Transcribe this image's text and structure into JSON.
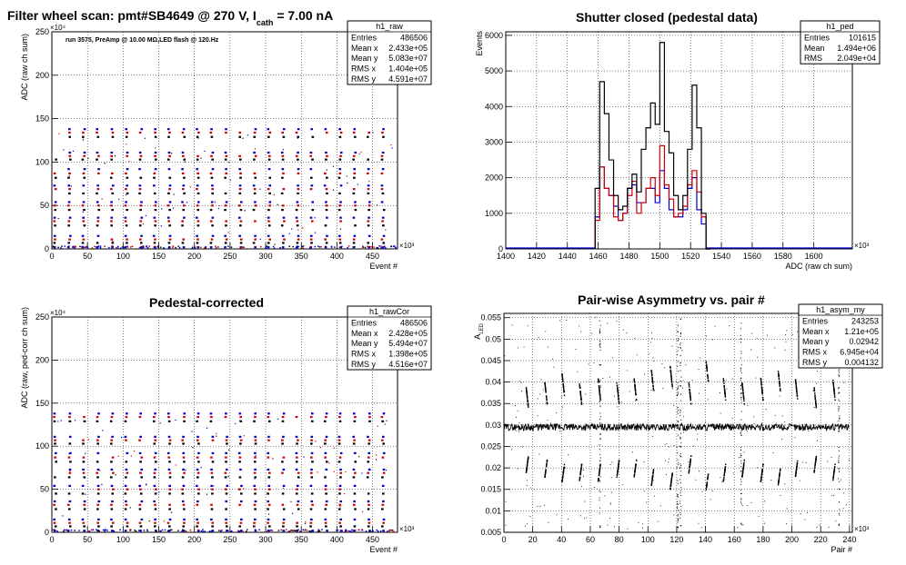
{
  "page_title": {
    "main": "Filter wheel scan: pmt#SB4649 @   270 V, I",
    "sub": "cath",
    "tail": "= 7.00 nA"
  },
  "panels": [
    {
      "id": "raw",
      "stats": {
        "name": "h1_raw",
        "rows": [
          [
            "Entries",
            "486506"
          ],
          [
            "Mean x",
            "2.433e+05"
          ],
          [
            "Mean y",
            "5.083e+07"
          ],
          [
            "RMS x",
            "1.404e+05"
          ],
          [
            "RMS y",
            "4.591e+07"
          ]
        ]
      },
      "annotation": "run 3575, PreAmp @ 10.00 MΩ,LED flash @  120.Hz"
    },
    {
      "id": "ped",
      "title": "Shutter closed (pedestal data)",
      "stats": {
        "name": "h1_ped",
        "rows": [
          [
            "Entries",
            "101615"
          ],
          [
            "Mean",
            "1.494e+06"
          ],
          [
            "RMS",
            "2.049e+04"
          ]
        ]
      }
    },
    {
      "id": "rawCor",
      "title": "Pedestal-corrected",
      "stats": {
        "name": "h1_rawCor",
        "rows": [
          [
            "Entries",
            "486506"
          ],
          [
            "Mean x",
            "2.428e+05"
          ],
          [
            "Mean y",
            "5.494e+07"
          ],
          [
            "RMS x",
            "1.398e+05"
          ],
          [
            "RMS y",
            "4.516e+07"
          ]
        ]
      }
    },
    {
      "id": "asym",
      "title": "Pair-wise Asymmetry vs. pair #",
      "stats": {
        "name": "h1_asym_my",
        "rows": [
          [
            "Entries",
            "243253"
          ],
          [
            "Mean x",
            "1.21e+05"
          ],
          [
            "Mean y",
            "0.02942"
          ],
          [
            "RMS x",
            "6.945e+04"
          ],
          [
            "RMS y",
            "0.004132"
          ]
        ]
      }
    }
  ],
  "chart_data": [
    {
      "type": "scatter",
      "title": "",
      "xlabel": "Event #",
      "ylabel": "ADC (raw ch sum)",
      "x_exponent": "×10³",
      "y_exponent": "×10⁴",
      "xlim": [
        0,
        485
      ],
      "ylim": [
        0,
        250
      ],
      "xticks": [
        0,
        50,
        100,
        150,
        200,
        250,
        300,
        350,
        400,
        450
      ],
      "yticks": [
        0,
        50,
        100,
        150,
        200,
        250
      ],
      "grid": true,
      "colors": [
        "#0000cc",
        "#cc0000",
        "#000000"
      ],
      "levels": [
        {
          "y": 138,
          "color": "#0000cc"
        },
        {
          "y": 134,
          "color": "#cc0000"
        },
        {
          "y": 129,
          "color": "#000000"
        },
        {
          "y": 111,
          "color": "#0000cc"
        },
        {
          "y": 107,
          "color": "#cc0000"
        },
        {
          "y": 103,
          "color": "#000000"
        },
        {
          "y": 92,
          "color": "#0000cc"
        },
        {
          "y": 87,
          "color": "#cc0000"
        },
        {
          "y": 82,
          "color": "#000000"
        },
        {
          "y": 73,
          "color": "#0000cc"
        },
        {
          "y": 69,
          "color": "#cc0000"
        },
        {
          "y": 64,
          "color": "#000000"
        },
        {
          "y": 54,
          "color": "#0000cc"
        },
        {
          "y": 50,
          "color": "#cc0000"
        },
        {
          "y": 45,
          "color": "#000000"
        },
        {
          "y": 36,
          "color": "#0000cc"
        },
        {
          "y": 32,
          "color": "#cc0000"
        },
        {
          "y": 27,
          "color": "#000000"
        },
        {
          "y": 15,
          "color": "#0000cc"
        },
        {
          "y": 11,
          "color": "#cc0000"
        },
        {
          "y": 7,
          "color": "#000000"
        },
        {
          "y": 2,
          "color": "#0000cc"
        }
      ],
      "columns": [
        3,
        23,
        43,
        63,
        83,
        103,
        123,
        143,
        163,
        183,
        203,
        223,
        243,
        263,
        283,
        303,
        323,
        343,
        363,
        383,
        403,
        423,
        443,
        463
      ]
    },
    {
      "type": "line",
      "title": "Shutter closed (pedestal data)",
      "xlabel": "ADC (raw ch sum)",
      "ylabel": "Events",
      "x_exponent": "×10³",
      "xlim": [
        1400,
        1625
      ],
      "ylim": [
        0,
        6100
      ],
      "xticks": [
        1400,
        1420,
        1440,
        1460,
        1480,
        1500,
        1520,
        1540,
        1560,
        1580,
        1600
      ],
      "yticks": [
        0,
        1000,
        2000,
        3000,
        4000,
        5000,
        6000
      ],
      "grid": true,
      "series": [
        {
          "color": "#000000",
          "x": [
            1458,
            1461,
            1464,
            1467,
            1470,
            1473,
            1476,
            1479,
            1482,
            1485,
            1488,
            1491,
            1494,
            1497,
            1500,
            1503,
            1506,
            1509,
            1512,
            1515,
            1518,
            1521,
            1524,
            1527,
            1530
          ],
          "values": [
            1700,
            4700,
            3800,
            2500,
            1500,
            1100,
            1200,
            1700,
            2100,
            1600,
            2800,
            3400,
            4100,
            3500,
            5800,
            3300,
            2700,
            1500,
            1100,
            1500,
            2800,
            4600,
            3400,
            1000,
            0
          ]
        },
        {
          "color": "#cc0000",
          "x": [
            1458,
            1461,
            1464,
            1467,
            1470,
            1473,
            1476,
            1479,
            1482,
            1485,
            1488,
            1491,
            1494,
            1497,
            1500,
            1503,
            1506,
            1509,
            1512,
            1515,
            1518,
            1521,
            1524,
            1527,
            1530
          ],
          "values": [
            800,
            2300,
            1700,
            1500,
            900,
            800,
            1000,
            1500,
            1900,
            1000,
            1300,
            1700,
            2000,
            1500,
            2900,
            1800,
            1400,
            900,
            1000,
            1200,
            1800,
            2200,
            1600,
            900,
            0
          ]
        },
        {
          "color": "#0000cc",
          "x": [
            1458,
            1461,
            1464,
            1467,
            1470,
            1473,
            1476,
            1479,
            1482,
            1485,
            1488,
            1491,
            1494,
            1497,
            1500,
            1503,
            1506,
            1509,
            1512,
            1515,
            1518,
            1521,
            1524,
            1527,
            1530
          ],
          "values": [
            900,
            2300,
            1700,
            1500,
            1200,
            800,
            1000,
            1700,
            1800,
            1300,
            1300,
            1700,
            1700,
            1300,
            2200,
            1700,
            1100,
            900,
            900,
            1100,
            1700,
            2000,
            1100,
            700,
            0
          ]
        }
      ]
    },
    {
      "type": "scatter",
      "title": "Pedestal-corrected",
      "xlabel": "Event #",
      "ylabel": "ADC (raw, ped-corr ch sum)",
      "x_exponent": "×10³",
      "y_exponent": "×10⁴",
      "xlim": [
        0,
        485
      ],
      "ylim": [
        0,
        250
      ],
      "xticks": [
        0,
        50,
        100,
        150,
        200,
        250,
        300,
        350,
        400,
        450
      ],
      "yticks": [
        0,
        50,
        100,
        150,
        200,
        250
      ],
      "grid": true,
      "levels": [
        {
          "y": 138,
          "color": "#0000cc"
        },
        {
          "y": 134,
          "color": "#cc0000"
        },
        {
          "y": 129,
          "color": "#000000"
        },
        {
          "y": 111,
          "color": "#0000cc"
        },
        {
          "y": 107,
          "color": "#cc0000"
        },
        {
          "y": 103,
          "color": "#000000"
        },
        {
          "y": 92,
          "color": "#0000cc"
        },
        {
          "y": 87,
          "color": "#cc0000"
        },
        {
          "y": 82,
          "color": "#000000"
        },
        {
          "y": 73,
          "color": "#0000cc"
        },
        {
          "y": 69,
          "color": "#cc0000"
        },
        {
          "y": 64,
          "color": "#000000"
        },
        {
          "y": 54,
          "color": "#0000cc"
        },
        {
          "y": 50,
          "color": "#cc0000"
        },
        {
          "y": 45,
          "color": "#000000"
        },
        {
          "y": 36,
          "color": "#0000cc"
        },
        {
          "y": 32,
          "color": "#cc0000"
        },
        {
          "y": 27,
          "color": "#000000"
        },
        {
          "y": 15,
          "color": "#0000cc"
        },
        {
          "y": 11,
          "color": "#cc0000"
        },
        {
          "y": 7,
          "color": "#000000"
        },
        {
          "y": 2,
          "color": "#0000cc"
        }
      ],
      "columns": [
        3,
        23,
        43,
        63,
        83,
        103,
        123,
        143,
        163,
        183,
        203,
        223,
        243,
        263,
        283,
        303,
        323,
        343,
        363,
        383,
        403,
        423,
        443,
        463
      ]
    },
    {
      "type": "scatter",
      "title": "Pair-wise Asymmetry vs. pair #",
      "xlabel": "Pair #",
      "ylabel": "A",
      "ylabel_sub": "LED",
      "x_exponent": "×10³",
      "xlim": [
        0,
        242
      ],
      "ylim": [
        0.005,
        0.056
      ],
      "xticks": [
        0,
        20,
        40,
        60,
        80,
        100,
        120,
        140,
        160,
        180,
        200,
        220,
        240
      ],
      "yticks": [
        0.005,
        0.01,
        0.015,
        0.02,
        0.025,
        0.03,
        0.035,
        0.04,
        0.045,
        0.05,
        0.055
      ],
      "grid": true,
      "band_y": 0.0295,
      "bursts": [
        {
          "x": 15,
          "hi": 0.039,
          "lo": 0.019
        },
        {
          "x": 28,
          "hi": 0.04,
          "lo": 0.018
        },
        {
          "x": 40,
          "hi": 0.042,
          "lo": 0.017
        },
        {
          "x": 52,
          "hi": 0.04,
          "lo": 0.017
        },
        {
          "x": 65,
          "hi": 0.041,
          "lo": 0.017
        },
        {
          "x": 78,
          "hi": 0.04,
          "lo": 0.018
        },
        {
          "x": 90,
          "hi": 0.041,
          "lo": 0.018
        },
        {
          "x": 102,
          "hi": 0.043,
          "lo": 0.016
        },
        {
          "x": 115,
          "hi": 0.044,
          "lo": 0.015
        },
        {
          "x": 128,
          "hi": 0.04,
          "lo": 0.019
        },
        {
          "x": 140,
          "hi": 0.045,
          "lo": 0.015
        },
        {
          "x": 152,
          "hi": 0.041,
          "lo": 0.017
        },
        {
          "x": 165,
          "hi": 0.04,
          "lo": 0.018
        },
        {
          "x": 178,
          "hi": 0.041,
          "lo": 0.017
        },
        {
          "x": 190,
          "hi": 0.043,
          "lo": 0.016
        },
        {
          "x": 202,
          "hi": 0.041,
          "lo": 0.018
        },
        {
          "x": 215,
          "hi": 0.039,
          "lo": 0.019
        },
        {
          "x": 228,
          "hi": 0.041,
          "lo": 0.017
        }
      ]
    }
  ]
}
